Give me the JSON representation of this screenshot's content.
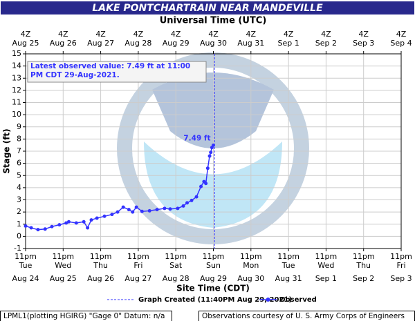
{
  "chart_data": {
    "type": "line",
    "title": "LAKE PONTCHARTRAIN NEAR MANDEVILLE",
    "top_axis_title": "Universal Time (UTC)",
    "x_label": "Site Time (CDT)",
    "y_label": "Stage (ft)",
    "xlim": [
      0,
      10
    ],
    "ylim": [
      -1,
      15
    ],
    "yticks": [
      -1,
      0,
      1,
      2,
      3,
      4,
      5,
      6,
      7,
      8,
      9,
      10,
      11,
      12,
      13,
      14,
      15
    ],
    "xticks": [
      {
        "value": 0,
        "label": "11pm",
        "day": "Tue",
        "date": "Aug 24"
      },
      {
        "value": 1,
        "label": "11pm",
        "day": "Wed",
        "date": "Aug 25"
      },
      {
        "value": 2,
        "label": "11pm",
        "day": "Thu",
        "date": "Aug 26"
      },
      {
        "value": 3,
        "label": "11pm",
        "day": "Fri",
        "date": "Aug 27"
      },
      {
        "value": 4,
        "label": "11pm",
        "day": "Sat",
        "date": "Aug 28"
      },
      {
        "value": 5,
        "label": "11pm",
        "day": "Sun",
        "date": "Aug 29"
      },
      {
        "value": 6,
        "label": "11pm",
        "day": "Mon",
        "date": "Aug 30"
      },
      {
        "value": 7,
        "label": "11pm",
        "day": "Tue",
        "date": "Aug 31"
      },
      {
        "value": 8,
        "label": "11pm",
        "day": "Wed",
        "date": "Sep 1"
      },
      {
        "value": 9,
        "label": "11pm",
        "day": "Thu",
        "date": "Sep 2"
      },
      {
        "value": 10,
        "label": "11pm",
        "day": "Fri",
        "date": "Sep 3"
      }
    ],
    "x2ticks": [
      {
        "value": 0,
        "label": "4Z",
        "date": "Aug 25"
      },
      {
        "value": 1,
        "label": "4Z",
        "date": "Aug 26"
      },
      {
        "value": 2,
        "label": "4Z",
        "date": "Aug 27"
      },
      {
        "value": 3,
        "label": "4Z",
        "date": "Aug 28"
      },
      {
        "value": 4,
        "label": "4Z",
        "date": "Aug 29"
      },
      {
        "value": 5,
        "label": "4Z",
        "date": "Aug 30"
      },
      {
        "value": 6,
        "label": "4Z",
        "date": "Aug 31"
      },
      {
        "value": 7,
        "label": "4Z",
        "date": "Sep 1"
      },
      {
        "value": 8,
        "label": "4Z",
        "date": "Sep 2"
      },
      {
        "value": 9,
        "label": "4Z",
        "date": "Sep 3"
      },
      {
        "value": 10,
        "label": "4Z",
        "date": "Sep 4"
      }
    ],
    "grid": true,
    "created_x": 5.03,
    "created_label": "Graph Created (11:40PM Aug 29, 2021)",
    "latest_note": "Latest observed value: 7.49 ft at 11:00 PM CDT 29-Aug-2021.",
    "latest_label": "7.49 ft",
    "x": [
      0,
      0.15,
      0.33,
      0.52,
      0.7,
      0.9,
      1.08,
      1.15,
      1.35,
      1.55,
      1.65,
      1.75,
      1.9,
      2.1,
      2.3,
      2.45,
      2.6,
      2.75,
      2.85,
      2.95,
      3.1,
      3.3,
      3.5,
      3.7,
      3.85,
      4.05,
      4.2,
      4.3,
      4.42,
      4.55,
      4.67,
      4.75,
      4.8,
      4.85,
      4.9,
      4.93,
      4.96,
      5.0
    ],
    "series": [
      {
        "name": "Observed",
        "color": "#3333ff",
        "values": [
          0.85,
          0.7,
          0.55,
          0.6,
          0.8,
          0.95,
          1.1,
          1.2,
          1.1,
          1.2,
          0.7,
          1.35,
          1.5,
          1.65,
          1.8,
          2.0,
          2.4,
          2.2,
          2.0,
          2.4,
          2.05,
          2.1,
          2.2,
          2.3,
          2.25,
          2.3,
          2.5,
          2.75,
          2.95,
          3.25,
          4.1,
          4.5,
          4.35,
          5.6,
          6.6,
          6.9,
          7.3,
          7.49
        ]
      }
    ],
    "footer_left": "LPML1(plotting HGIRG) \"Gage 0\" Datum: n/a",
    "footer_right": "Observations courtesy of U. S. Army Corps of Engineers"
  }
}
